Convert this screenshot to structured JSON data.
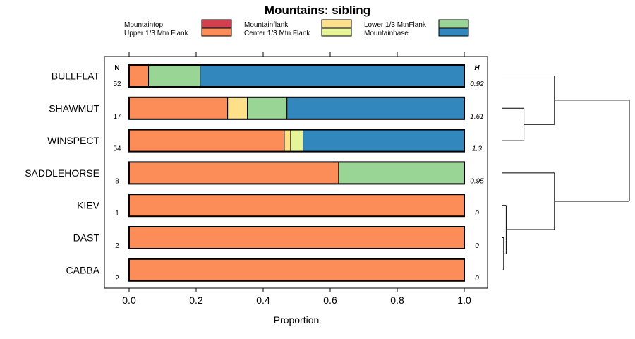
{
  "chart_data": {
    "type": "bar",
    "orientation": "horizontal",
    "stacked": true,
    "title": "Mountains: sibling",
    "xlabel": "Proportion",
    "ylabel": "",
    "xlim": [
      -0.07,
      1.07
    ],
    "x_ticks": [
      0.0,
      0.2,
      0.4,
      0.6,
      0.8,
      1.0
    ],
    "x_tick_labels": [
      "0.0",
      "0.2",
      "0.4",
      "0.6",
      "0.8",
      "1.0"
    ],
    "n_header": "N",
    "h_header": "H",
    "legend": [
      {
        "name": "Mountaintop",
        "color": "#D53E4F"
      },
      {
        "name": "Upper 1/3 Mtn Flank",
        "color": "#FC8D59"
      },
      {
        "name": "Mountainflank",
        "color": "#FEE08B"
      },
      {
        "name": "Center 1/3 Mtn Flank",
        "color": "#E6F598"
      },
      {
        "name": "Lower 1/3 MtnFlank",
        "color": "#99D594"
      },
      {
        "name": "Mountainbase",
        "color": "#3288BD"
      }
    ],
    "categories": [
      "BULLFLAT",
      "SHAWMUT",
      "WINSPECT",
      "SADDLEHORSE",
      "KIEV",
      "DAST",
      "CABBA"
    ],
    "n": [
      "52",
      "17",
      "54",
      "8",
      "1",
      "2",
      "2"
    ],
    "h": [
      "0.92",
      "1.61",
      "1.3",
      "0.95",
      "0",
      "0",
      "0"
    ],
    "series": [
      {
        "name": "Mountaintop",
        "values": [
          0,
          0,
          0,
          0,
          0,
          0,
          0
        ]
      },
      {
        "name": "Upper 1/3 Mtn Flank",
        "values": [
          0.058,
          0.294,
          0.463,
          0.625,
          1,
          1,
          1
        ]
      },
      {
        "name": "Mountainflank",
        "values": [
          0,
          0.059,
          0.019,
          0,
          0,
          0,
          0
        ]
      },
      {
        "name": "Center 1/3 Mtn Flank",
        "values": [
          0,
          0,
          0.037,
          0,
          0,
          0,
          0
        ]
      },
      {
        "name": "Lower 1/3 MtnFlank",
        "values": [
          0.154,
          0.118,
          0,
          0.375,
          0,
          0,
          0
        ]
      },
      {
        "name": "Mountainbase",
        "values": [
          0.788,
          0.529,
          0.481,
          0,
          0,
          0,
          0
        ]
      }
    ],
    "dendrogram": {
      "leaves": [
        "BULLFLAT",
        "SHAWMUT",
        "WINSPECT",
        "SADDLEHORSE",
        "KIEV",
        "DAST",
        "CABBA"
      ],
      "merges": [
        {
          "left": "SHAWMUT",
          "right": "WINSPECT",
          "height": 0.17
        },
        {
          "left": "DAST",
          "right": "CABBA",
          "height": 0.01
        },
        {
          "left": "KIEV",
          "right": "DAST+CABBA",
          "height": 0.03
        },
        {
          "left": "BULLFLAT",
          "right": "SHAWMUT+WINSPECT",
          "height": 0.41
        },
        {
          "left": "SADDLEHORSE",
          "right": "KIEV+DAST+CABBA",
          "height": 0.41
        },
        {
          "left": "top",
          "right": "bottom",
          "height": 1.0
        }
      ]
    }
  }
}
